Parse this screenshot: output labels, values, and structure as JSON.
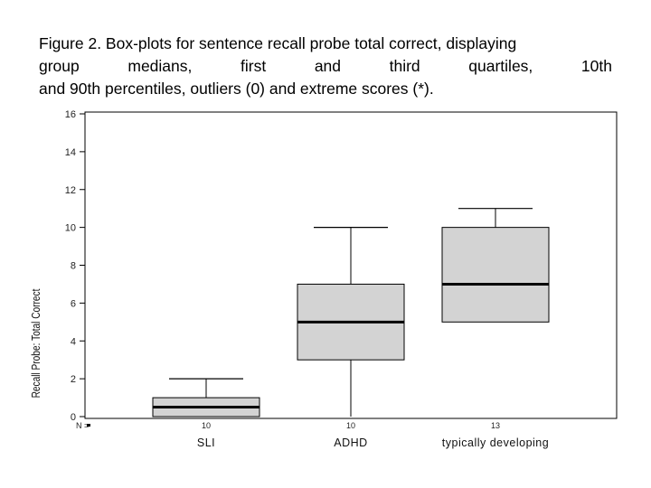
{
  "caption": {
    "line1": "Figure 2. Box-plots for sentence recall probe total correct, displaying",
    "line2_words": [
      "group",
      "medians,",
      "first",
      "and",
      "third",
      "quartiles,",
      "10th"
    ],
    "line3": "and 90th percentiles, outliers (0) and extreme scores (*)."
  },
  "chart_data": {
    "type": "boxplot",
    "ylabel": "Recall Probe: Total Correct",
    "ylim": [
      0,
      16
    ],
    "yticks": [
      0,
      2,
      4,
      6,
      8,
      10,
      12,
      14,
      16
    ],
    "n_prefix": "N =",
    "groups": [
      {
        "category": "SLI",
        "n": "10",
        "whisker_low": 0,
        "q1": 0,
        "median": 0.5,
        "q3": 1,
        "whisker_high": 2
      },
      {
        "category": "ADHD",
        "n": "10",
        "whisker_low": 0,
        "q1": 3,
        "median": 5,
        "q3": 7,
        "whisker_high": 10
      },
      {
        "category": "typically developing",
        "n": "13",
        "whisker_low": 5,
        "q1": 5,
        "median": 7,
        "q3": 10,
        "whisker_high": 11
      }
    ],
    "colors": {
      "box_fill": "#d3d3d3",
      "stroke": "#000000"
    }
  }
}
